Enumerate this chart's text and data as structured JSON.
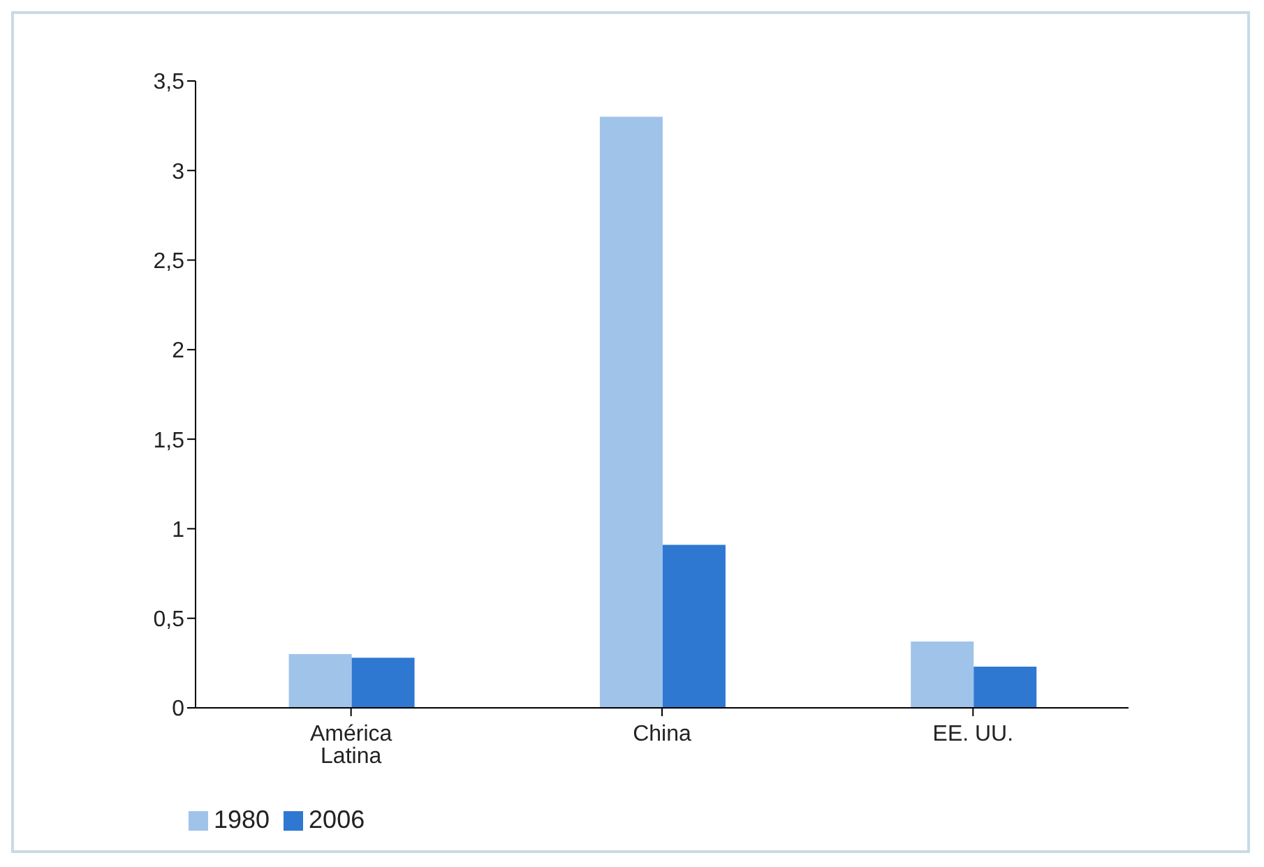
{
  "chart_data": {
    "type": "bar",
    "categories": [
      "América Latina",
      "China",
      "EE. UU."
    ],
    "series": [
      {
        "name": "1980",
        "color": "#a0c3ea",
        "values": [
          0.3,
          3.3,
          0.37
        ]
      },
      {
        "name": "2006",
        "color": "#2e78d2",
        "values": [
          0.28,
          0.91,
          0.23
        ]
      }
    ],
    "ylim": [
      0,
      3.5
    ],
    "yticks": [
      0,
      {
        "value": 0.5,
        "label": "0,5"
      },
      1,
      {
        "value": 1.5,
        "label": "1,5"
      },
      2,
      {
        "value": 2.5,
        "label": "2,5"
      },
      3,
      {
        "value": 3.5,
        "label": "3,5"
      }
    ],
    "grid": false,
    "legend": "bottom left"
  }
}
